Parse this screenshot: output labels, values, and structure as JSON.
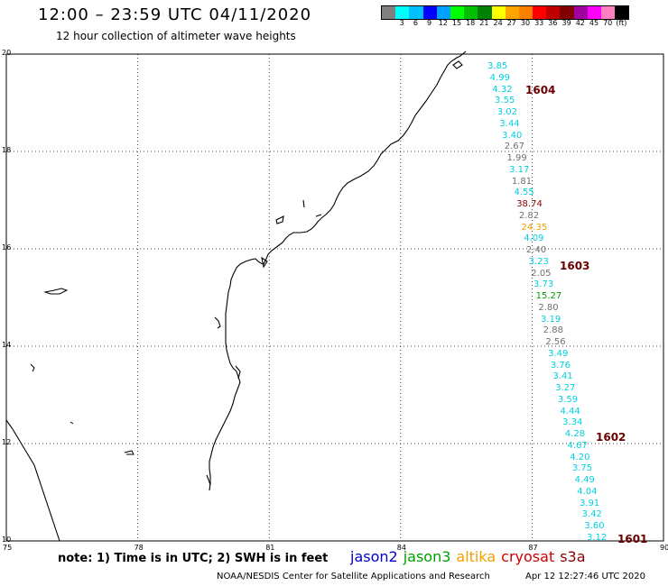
{
  "header": {
    "title": "12:00 – 23:59 UTC 04/11/2020",
    "subtitle": "12 hour collection of altimeter wave heights"
  },
  "legend": {
    "colors": [
      "#808080",
      "#00ffff",
      "#00c0ff",
      "#0000ff",
      "#00a0ff",
      "#00ff00",
      "#00c000",
      "#008000",
      "#ffff00",
      "#ffa500",
      "#ff8000",
      "#ff0000",
      "#c00000",
      "#800000",
      "#a000a0",
      "#ff00ff",
      "#ff80c0",
      "#000000"
    ],
    "labels": [
      "3",
      "6",
      "9",
      "12",
      "15",
      "18",
      "21",
      "24",
      "27",
      "30",
      "33",
      "36",
      "39",
      "42",
      "45",
      "70",
      "(ft)"
    ]
  },
  "axes": {
    "lat_labels": [
      "20",
      "18",
      "16",
      "14",
      "12",
      "10"
    ],
    "lon_labels": [
      "75",
      "78",
      "81",
      "84",
      "87",
      "90"
    ]
  },
  "wave_heights": [
    {
      "v": "3.85",
      "c": "#00d0e0"
    },
    {
      "v": "4.99",
      "c": "#00d0e0"
    },
    {
      "v": "4.32",
      "c": "#00d0e0"
    },
    {
      "v": "3.55",
      "c": "#00d0e0"
    },
    {
      "v": "3.02",
      "c": "#00d0e0"
    },
    {
      "v": "3.44",
      "c": "#00d0e0"
    },
    {
      "v": "3.40",
      "c": "#00d0e0"
    },
    {
      "v": "2.67",
      "c": "#707070"
    },
    {
      "v": "1.99",
      "c": "#707070"
    },
    {
      "v": "3.17",
      "c": "#00d0e0"
    },
    {
      "v": "1.81",
      "c": "#707070"
    },
    {
      "v": "4.55",
      "c": "#00d0e0"
    },
    {
      "v": "38.74",
      "c": "#8b0000"
    },
    {
      "v": "2.82",
      "c": "#707070"
    },
    {
      "v": "24.35",
      "c": "#f0a000"
    },
    {
      "v": "4.09",
      "c": "#00d0e0"
    },
    {
      "v": "2.40",
      "c": "#707070"
    },
    {
      "v": "3.23",
      "c": "#00d0e0"
    },
    {
      "v": "2.05",
      "c": "#707070"
    },
    {
      "v": "3.73",
      "c": "#00d0e0"
    },
    {
      "v": "15.27",
      "c": "#00a000"
    },
    {
      "v": "2.80",
      "c": "#707070"
    },
    {
      "v": "3.19",
      "c": "#00d0e0"
    },
    {
      "v": "2.88",
      "c": "#707070"
    },
    {
      "v": "2.56",
      "c": "#707070"
    },
    {
      "v": "3.49",
      "c": "#00d0e0"
    },
    {
      "v": "3.76",
      "c": "#00d0e0"
    },
    {
      "v": "3.41",
      "c": "#00d0e0"
    },
    {
      "v": "3.27",
      "c": "#00d0e0"
    },
    {
      "v": "3.59",
      "c": "#00d0e0"
    },
    {
      "v": "4.44",
      "c": "#00d0e0"
    },
    {
      "v": "3.34",
      "c": "#00d0e0"
    },
    {
      "v": "4.28",
      "c": "#00d0e0"
    },
    {
      "v": "4.67",
      "c": "#00d0e0"
    },
    {
      "v": "4.20",
      "c": "#00d0e0"
    },
    {
      "v": "3.75",
      "c": "#00d0e0"
    },
    {
      "v": "4.49",
      "c": "#00d0e0"
    },
    {
      "v": "4.04",
      "c": "#00d0e0"
    },
    {
      "v": "3.91",
      "c": "#00d0e0"
    },
    {
      "v": "3.42",
      "c": "#00d0e0"
    },
    {
      "v": "3.60",
      "c": "#00d0e0"
    },
    {
      "v": "3.12",
      "c": "#00d0e0"
    }
  ],
  "pass_times": [
    "1604",
    "1603",
    "1602",
    "1601"
  ],
  "footer": {
    "note": "note: 1) Time is in UTC; 2) SWH is in feet",
    "satellites": [
      {
        "name": "jason2",
        "color": "#0000d0"
      },
      {
        "name": "jason3",
        "color": "#00a000"
      },
      {
        "name": "altika",
        "color": "#f0a000"
      },
      {
        "name": "cryosat",
        "color": "#d00000"
      },
      {
        "name": "s3a",
        "color": "#8b0000"
      }
    ],
    "credit": "NOAA/NESDIS Center for Satellite Applications and Research",
    "timestamp": "Apr 12 12:27:46 UTC 2020"
  }
}
